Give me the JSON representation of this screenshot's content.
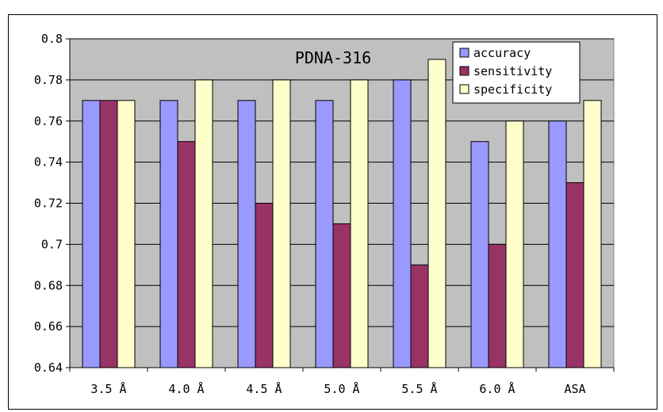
{
  "chart_data": {
    "type": "bar",
    "title": "PDNA-316",
    "categories": [
      "3.5 Å",
      "4.0 Å",
      "4.5 Å",
      "5.0 Å",
      "5.5 Å",
      "6.0 Å",
      "ASA"
    ],
    "series": [
      {
        "name": "accuracy",
        "color": "#9999FF",
        "values": [
          0.77,
          0.77,
          0.77,
          0.77,
          0.78,
          0.75,
          0.76
        ]
      },
      {
        "name": "sensitivity",
        "color": "#993366",
        "values": [
          0.77,
          0.75,
          0.72,
          0.71,
          0.69,
          0.7,
          0.73
        ]
      },
      {
        "name": "specificity",
        "color": "#FFFFCC",
        "values": [
          0.77,
          0.78,
          0.78,
          0.78,
          0.79,
          0.76,
          0.77
        ]
      }
    ],
    "ylim": [
      0.64,
      0.8
    ],
    "yticks": [
      "0.64",
      "0.66",
      "0.68",
      "0.7",
      "0.72",
      "0.74",
      "0.76",
      "0.78",
      "0.8"
    ],
    "grid": true,
    "legend_position": "top-right",
    "plot_background": "#C0C0C0",
    "xlabel": "",
    "ylabel": ""
  }
}
